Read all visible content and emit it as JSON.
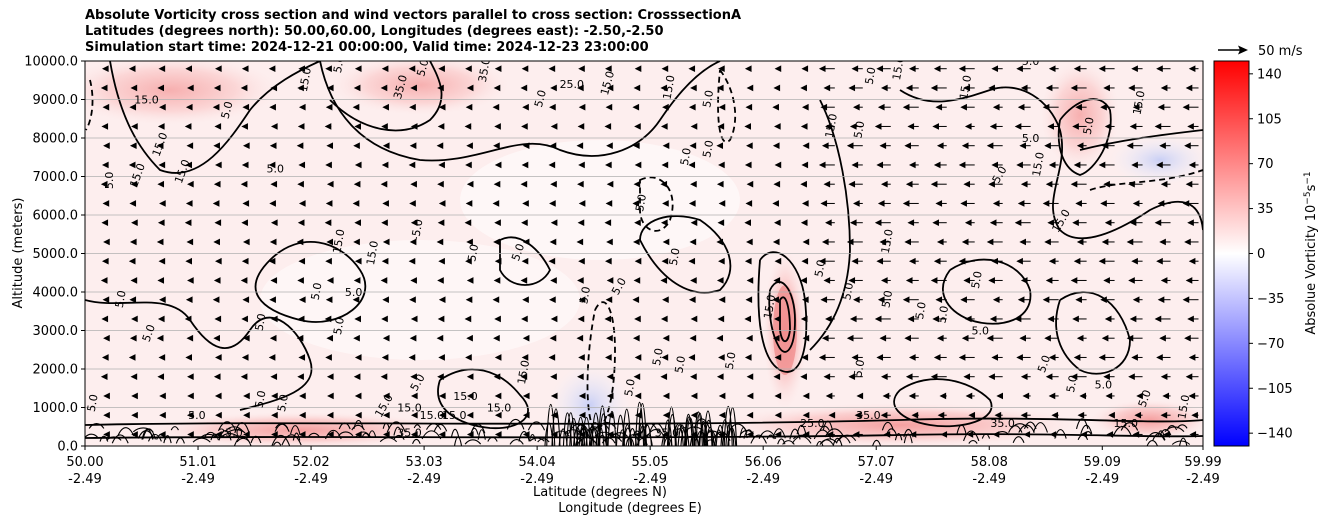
{
  "chart_data": {
    "type": "heatmap",
    "title_lines": [
      "Absolute Vorticity cross section and wind vectors parallel to cross section: CrosssectionA",
      "Latitudes (degrees north): 50.00,60.00, Longitudes (degrees east): -2.50,-2.50",
      "Simulation start time: 2024-12-21 00:00:00, Valid time: 2024-12-23 23:00:00"
    ],
    "xlabel_lines": [
      "Latitude (degrees N)",
      "Longitude (degrees E)"
    ],
    "ylabel": "Altitude (meters)",
    "xlim": [
      50.0,
      59.99
    ],
    "ylim": [
      0,
      10000
    ],
    "x_ticks": [
      {
        "lat": "50.00",
        "lon": "-2.49",
        "v": 50.0
      },
      {
        "lat": "51.01",
        "lon": "-2.49",
        "v": 51.01
      },
      {
        "lat": "52.02",
        "lon": "-2.49",
        "v": 52.02
      },
      {
        "lat": "53.03",
        "lon": "-2.49",
        "v": 53.03
      },
      {
        "lat": "54.04",
        "lon": "-2.49",
        "v": 54.04
      },
      {
        "lat": "55.05",
        "lon": "-2.49",
        "v": 55.05
      },
      {
        "lat": "56.06",
        "lon": "-2.49",
        "v": 56.06
      },
      {
        "lat": "57.07",
        "lon": "-2.49",
        "v": 57.07
      },
      {
        "lat": "58.08",
        "lon": "-2.49",
        "v": 58.08
      },
      {
        "lat": "59.09",
        "lon": "-2.49",
        "v": 59.09
      },
      {
        "lat": "59.99",
        "lon": "-2.49",
        "v": 59.99
      }
    ],
    "y_ticks": [
      {
        "label": "0.0",
        "v": 0
      },
      {
        "label": "1000.0",
        "v": 1000
      },
      {
        "label": "2000.0",
        "v": 2000
      },
      {
        "label": "3000.0",
        "v": 3000
      },
      {
        "label": "4000.0",
        "v": 4000
      },
      {
        "label": "5000.0",
        "v": 5000
      },
      {
        "label": "6000.0",
        "v": 6000
      },
      {
        "label": "7000.0",
        "v": 7000
      },
      {
        "label": "8000.0",
        "v": 8000
      },
      {
        "label": "9000.0",
        "v": 9000
      },
      {
        "label": "10000.0",
        "v": 10000
      }
    ],
    "grid": "horizontal",
    "colorbar": {
      "label": "Absolue Vorticity 10",
      "label_sup": "−5",
      "label_tail": "s",
      "label_sup2": "−1",
      "range": [
        -150,
        150
      ],
      "colormap": "bwr",
      "ticks": [
        {
          "label": "140",
          "v": 140
        },
        {
          "label": "105",
          "v": 105
        },
        {
          "label": "70",
          "v": 70
        },
        {
          "label": "35",
          "v": 35
        },
        {
          "label": "0",
          "v": 0
        },
        {
          "label": "−35",
          "v": -35
        },
        {
          "label": "−70",
          "v": -70
        },
        {
          "label": "−105",
          "v": -105
        },
        {
          "label": "−140",
          "v": -140
        }
      ]
    },
    "quiver_key": {
      "label": "50 m/s"
    },
    "wind_field": [
      {
        "x_from": 50.0,
        "x_to": 56.6,
        "direction": "west",
        "speed_ms": 8
      },
      {
        "x_from": 56.6,
        "x_to": 59.99,
        "direction": "west",
        "speed_ms": 22
      }
    ],
    "vorticity_features": [
      {
        "x": 56.2,
        "y": 3000,
        "value": 70,
        "note": "narrow positive column"
      },
      {
        "x": 54.6,
        "y": 800,
        "value": -35,
        "note": "negative lobe near surface"
      },
      {
        "x": 59.3,
        "y": 7500,
        "value": -10,
        "note": "weak negative upper region"
      }
    ],
    "contour_labels": [
      {
        "text": "15.0",
        "x": 50.55,
        "y": 8900,
        "rot": 0
      },
      {
        "text": "15.0",
        "x": 50.7,
        "y": 7800,
        "rot": -70
      },
      {
        "text": "15.0",
        "x": 50.9,
        "y": 7100,
        "rot": -70
      },
      {
        "text": "5.0",
        "x": 50.25,
        "y": 6900,
        "rot": -90
      },
      {
        "text": "5.0",
        "x": 51.3,
        "y": 8700,
        "rot": -75
      },
      {
        "text": "15.0",
        "x": 52.0,
        "y": 9500,
        "rot": -80
      },
      {
        "text": "5.0",
        "x": 52.3,
        "y": 9900,
        "rot": -80
      },
      {
        "text": "35.0",
        "x": 52.85,
        "y": 9300,
        "rot": -75
      },
      {
        "text": "5.0",
        "x": 53.05,
        "y": 9800,
        "rot": -75
      },
      {
        "text": "35.0",
        "x": 53.6,
        "y": 9750,
        "rot": -80
      },
      {
        "text": "25.0",
        "x": 54.35,
        "y": 9300,
        "rot": 0
      },
      {
        "text": "5.0",
        "x": 54.1,
        "y": 9000,
        "rot": -75
      },
      {
        "text": "15.0",
        "x": 54.7,
        "y": 9400,
        "rot": -75
      },
      {
        "text": "15.0",
        "x": 55.25,
        "y": 9300,
        "rot": -80
      },
      {
        "text": "5.0",
        "x": 55.6,
        "y": 9000,
        "rot": -80
      },
      {
        "text": "5.0",
        "x": 55.4,
        "y": 7500,
        "rot": -80
      },
      {
        "text": "5.0",
        "x": 55.6,
        "y": 7700,
        "rot": -80
      },
      {
        "text": "15.0",
        "x": 50.5,
        "y": 7000,
        "rot": -70
      },
      {
        "text": "5.0",
        "x": 51.7,
        "y": 7100,
        "rot": 0
      },
      {
        "text": "15.0",
        "x": 52.3,
        "y": 5300,
        "rot": -80
      },
      {
        "text": "-5.0",
        "x": 53.0,
        "y": 5600,
        "rot": -80
      },
      {
        "text": "15.0",
        "x": 52.6,
        "y": 5000,
        "rot": -80
      },
      {
        "text": "5.0",
        "x": 53.5,
        "y": 5000,
        "rot": -80
      },
      {
        "text": "5.0",
        "x": 53.9,
        "y": 5000,
        "rot": -70
      },
      {
        "text": "5.0",
        "x": 55.0,
        "y": 6300,
        "rot": -80
      },
      {
        "text": "5.0",
        "x": 55.3,
        "y": 4900,
        "rot": -80
      },
      {
        "text": "5.0",
        "x": 54.8,
        "y": 4100,
        "rot": -60
      },
      {
        "text": "5.0",
        "x": 54.5,
        "y": 3900,
        "rot": -80
      },
      {
        "text": "5.0",
        "x": 52.1,
        "y": 4000,
        "rot": -80
      },
      {
        "text": "5.0",
        "x": 52.4,
        "y": 3900,
        "rot": 0
      },
      {
        "text": "5.0",
        "x": 50.35,
        "y": 3800,
        "rot": -80
      },
      {
        "text": "5.0",
        "x": 50.6,
        "y": 2900,
        "rot": -70
      },
      {
        "text": "5.0",
        "x": 51.6,
        "y": 3200,
        "rot": -80
      },
      {
        "text": "5.0",
        "x": 52.3,
        "y": 3100,
        "rot": -80
      },
      {
        "text": "15.0",
        "x": 53.95,
        "y": 1900,
        "rot": -80
      },
      {
        "text": "5.0",
        "x": 53.0,
        "y": 1600,
        "rot": -60
      },
      {
        "text": "15.0",
        "x": 53.4,
        "y": 1200,
        "rot": 0
      },
      {
        "text": "5.0",
        "x": 51.6,
        "y": 1200,
        "rot": -80
      },
      {
        "text": "5.0",
        "x": 51.8,
        "y": 1100,
        "rot": -80
      },
      {
        "text": "5.0",
        "x": 50.1,
        "y": 1100,
        "rot": -80
      },
      {
        "text": "5.0",
        "x": 51.0,
        "y": 700,
        "rot": 0
      },
      {
        "text": "15.0",
        "x": 52.7,
        "y": 1000,
        "rot": -60
      },
      {
        "text": "15.0",
        "x": 52.9,
        "y": 900,
        "rot": 0
      },
      {
        "text": "15.0",
        "x": 53.1,
        "y": 700,
        "rot": 0
      },
      {
        "text": "15.0",
        "x": 53.3,
        "y": 700,
        "rot": 0
      },
      {
        "text": "15.0",
        "x": 53.7,
        "y": 900,
        "rot": 0
      },
      {
        "text": "5.0",
        "x": 55.35,
        "y": 2100,
        "rot": -80
      },
      {
        "text": "15.0",
        "x": 56.15,
        "y": 3600,
        "rot": -80
      },
      {
        "text": "15.0",
        "x": 57.2,
        "y": 5300,
        "rot": -80
      },
      {
        "text": "5.0",
        "x": 56.6,
        "y": 4600,
        "rot": -80
      },
      {
        "text": "5.0",
        "x": 56.85,
        "y": 4000,
        "rot": -80
      },
      {
        "text": "5.0",
        "x": 57.2,
        "y": 3800,
        "rot": -80
      },
      {
        "text": "5.0",
        "x": 57.7,
        "y": 3400,
        "rot": -80
      },
      {
        "text": "5.0",
        "x": 57.5,
        "y": 3500,
        "rot": -80
      },
      {
        "text": "5.0",
        "x": 58.0,
        "y": 2900,
        "rot": 0
      },
      {
        "text": "5.0",
        "x": 58.6,
        "y": 2100,
        "rot": -70
      },
      {
        "text": "5.0",
        "x": 58.0,
        "y": 4300,
        "rot": -80
      },
      {
        "text": "5.0",
        "x": 57.05,
        "y": 9600,
        "rot": -80
      },
      {
        "text": "5.0",
        "x": 58.45,
        "y": 9900,
        "rot": 0
      },
      {
        "text": "15.0",
        "x": 57.9,
        "y": 9300,
        "rot": -80
      },
      {
        "text": "5.0",
        "x": 58.45,
        "y": 7900,
        "rot": 0
      },
      {
        "text": "15.0",
        "x": 56.7,
        "y": 8300,
        "rot": -80
      },
      {
        "text": "5.0",
        "x": 56.95,
        "y": 8200,
        "rot": -80
      },
      {
        "text": "15.0",
        "x": 57.3,
        "y": 9800,
        "rot": -80
      },
      {
        "text": "15.0",
        "x": 59.45,
        "y": 8900,
        "rot": -80
      },
      {
        "text": "5.0",
        "x": 59.0,
        "y": 8300,
        "rot": -80
      },
      {
        "text": "15.0",
        "x": 58.55,
        "y": 7300,
        "rot": -80
      },
      {
        "text": "5.0",
        "x": 58.2,
        "y": 7000,
        "rot": -60
      },
      {
        "text": "15.0",
        "x": 58.75,
        "y": 5800,
        "rot": -60
      },
      {
        "text": "5.0",
        "x": 59.1,
        "y": 1500,
        "rot": 0
      },
      {
        "text": "5.0",
        "x": 58.85,
        "y": 1600,
        "rot": -80
      },
      {
        "text": "5.0",
        "x": 59.5,
        "y": 1200,
        "rot": -70
      },
      {
        "text": "15.0",
        "x": 59.85,
        "y": 1000,
        "rot": -80
      },
      {
        "text": "15.0",
        "x": 59.3,
        "y": 500,
        "rot": 0
      },
      {
        "text": "25.0",
        "x": 56.5,
        "y": 500,
        "rot": 0
      },
      {
        "text": "5.0",
        "x": 56.95,
        "y": 2000,
        "rot": -80
      },
      {
        "text": "5.0",
        "x": 55.8,
        "y": 2200,
        "rot": -80
      },
      {
        "text": "5.0",
        "x": 55.15,
        "y": 2300,
        "rot": -80
      },
      {
        "text": "5.0",
        "x": 54.9,
        "y": 1500,
        "rot": -80
      },
      {
        "text": "35.0",
        "x": 52.9,
        "y": 250,
        "rot": 0
      },
      {
        "text": "35.0",
        "x": 55.2,
        "y": 250,
        "rot": 0
      },
      {
        "text": "35.0",
        "x": 57.0,
        "y": 700,
        "rot": 0
      },
      {
        "text": "35.0",
        "x": 58.2,
        "y": 500,
        "rot": 0
      },
      {
        "text": "25.0",
        "x": 51.3,
        "y": 250,
        "rot": 0
      }
    ]
  }
}
